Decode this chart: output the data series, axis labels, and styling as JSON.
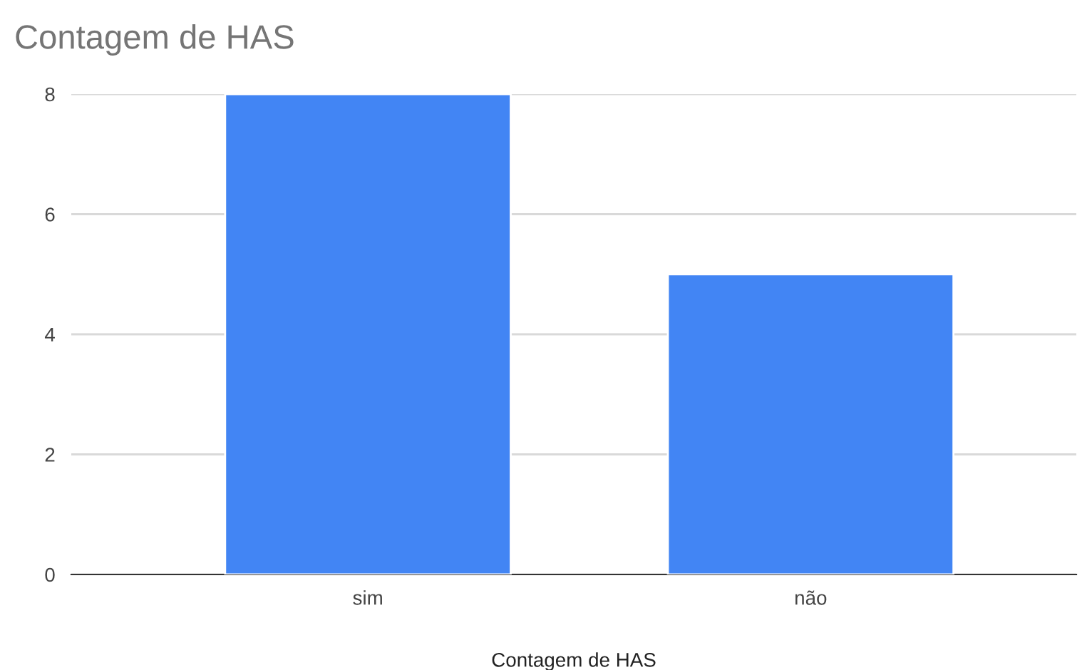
{
  "chart_data": {
    "type": "bar",
    "title": "Contagem de HAS",
    "xlabel": "Contagem de HAS",
    "categories": [
      "sim",
      "não"
    ],
    "values": [
      8,
      5
    ],
    "color": "#4285f4",
    "ylim": [
      0,
      8
    ],
    "yticks": [
      0,
      2,
      4,
      6,
      8
    ],
    "grid": "y"
  }
}
